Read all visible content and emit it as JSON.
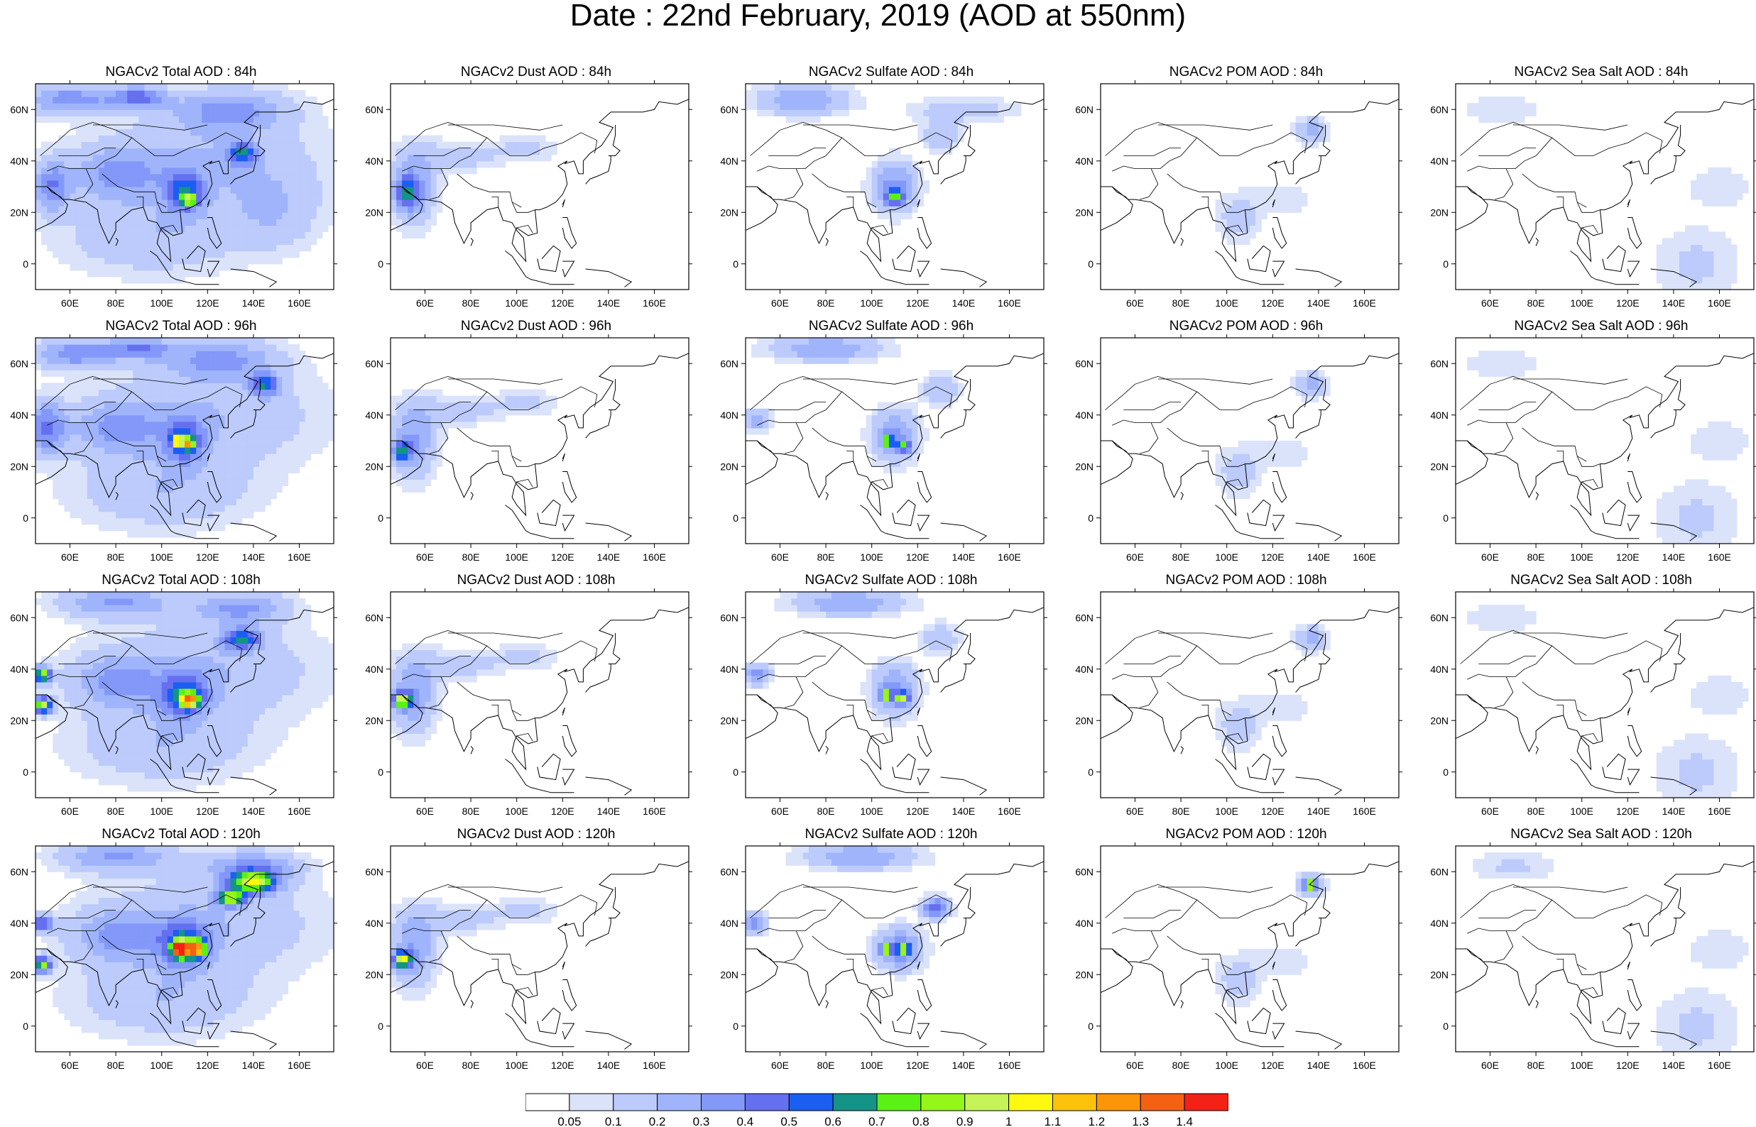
{
  "title": "Date : 22nd February, 2019 (AOD at 550nm)",
  "colors": {
    "levels": [
      "#ffffff",
      "#dbe3fb",
      "#bccbfb",
      "#a0b4fb",
      "#8398f8",
      "#6570f0",
      "#1a5ef2",
      "#139487",
      "#5af214",
      "#96f519",
      "#c6f357",
      "#fff80f",
      "#fdc20b",
      "#fd9509",
      "#f56113",
      "#f42116"
    ]
  },
  "colorbar": {
    "labels": [
      "0.05",
      "0.1",
      "0.2",
      "0.3",
      "0.4",
      "0.5",
      "0.6",
      "0.7",
      "0.8",
      "0.9",
      "1",
      "1.1",
      "1.2",
      "1.3",
      "1.4"
    ]
  },
  "axes": {
    "x_ticks": [
      "60E",
      "80E",
      "100E",
      "120E",
      "140E",
      "160E"
    ],
    "y_ticks": [
      "60N",
      "40N",
      "20N",
      "0"
    ]
  },
  "panels": [
    {
      "title": "NGACv2 Total AOD : 84h",
      "variable": "total",
      "hour": 84
    },
    {
      "title": "NGACv2 Dust AOD : 84h",
      "variable": "dust",
      "hour": 84
    },
    {
      "title": "NGACv2 Sulfate AOD : 84h",
      "variable": "sulfate",
      "hour": 84
    },
    {
      "title": "NGACv2 POM AOD : 84h",
      "variable": "pom",
      "hour": 84
    },
    {
      "title": "NGACv2 Sea Salt AOD : 84h",
      "variable": "seasalt",
      "hour": 84
    },
    {
      "title": "NGACv2 Total AOD : 96h",
      "variable": "total",
      "hour": 96
    },
    {
      "title": "NGACv2 Dust AOD : 96h",
      "variable": "dust",
      "hour": 96
    },
    {
      "title": "NGACv2 Sulfate AOD : 96h",
      "variable": "sulfate",
      "hour": 96
    },
    {
      "title": "NGACv2 POM AOD : 96h",
      "variable": "pom",
      "hour": 96
    },
    {
      "title": "NGACv2 Sea Salt AOD : 96h",
      "variable": "seasalt",
      "hour": 96
    },
    {
      "title": "NGACv2 Total AOD : 108h",
      "variable": "total",
      "hour": 108
    },
    {
      "title": "NGACv2 Dust AOD : 108h",
      "variable": "dust",
      "hour": 108
    },
    {
      "title": "NGACv2 Sulfate AOD : 108h",
      "variable": "sulfate",
      "hour": 108
    },
    {
      "title": "NGACv2 POM AOD : 108h",
      "variable": "pom",
      "hour": 108
    },
    {
      "title": "NGACv2 Sea Salt AOD : 108h",
      "variable": "seasalt",
      "hour": 108
    },
    {
      "title": "NGACv2 Total AOD : 120h",
      "variable": "total",
      "hour": 120
    },
    {
      "title": "NGACv2 Dust AOD : 120h",
      "variable": "dust",
      "hour": 120
    },
    {
      "title": "NGACv2 Sulfate AOD : 120h",
      "variable": "sulfate",
      "hour": 120
    },
    {
      "title": "NGACv2 POM AOD : 120h",
      "variable": "pom",
      "hour": 120
    },
    {
      "title": "NGACv2 Sea Salt  AOD : 120h",
      "variable": "seasalt",
      "hour": 120
    }
  ],
  "chart_data": {
    "type": "heatmap",
    "title": "Date : 22nd February, 2019 (AOD at 550nm)",
    "grid_layout": "4 rows x 5 columns",
    "x_range": [
      45,
      175
    ],
    "y_range": [
      -10,
      70
    ],
    "x_ticks": [
      60,
      80,
      100,
      120,
      140,
      160
    ],
    "y_ticks": [
      60,
      40,
      20,
      0
    ],
    "color_levels": [
      0.05,
      0.1,
      0.2,
      0.3,
      0.4,
      0.5,
      0.6,
      0.7,
      0.8,
      0.9,
      1,
      1.1,
      1.2,
      1.3,
      1.4
    ],
    "blobs": {
      "total": [
        [
          [
            60,
            64,
            20,
            6,
            0.35
          ],
          [
            90,
            65,
            12,
            4,
            0.4
          ],
          [
            130,
            60,
            25,
            8,
            0.3
          ],
          [
            110,
            28,
            8,
            8,
            0.45
          ],
          [
            112,
            25,
            3,
            2,
            0.6
          ],
          [
            135,
            43,
            6,
            4,
            0.5
          ],
          [
            52,
            30,
            8,
            10,
            0.35
          ],
          [
            80,
            35,
            20,
            10,
            0.25
          ],
          [
            120,
            40,
            50,
            20,
            0.2
          ],
          [
            95,
            10,
            40,
            15,
            0.18
          ],
          [
            150,
            20,
            20,
            15,
            0.15
          ]
        ],
        [
          [
            62,
            64,
            18,
            6,
            0.35
          ],
          [
            90,
            66,
            14,
            4,
            0.35
          ],
          [
            125,
            62,
            25,
            8,
            0.3
          ],
          [
            110,
            30,
            8,
            8,
            0.45
          ],
          [
            107,
            30,
            2,
            2,
            0.8
          ],
          [
            112,
            29,
            2,
            2,
            0.75
          ],
          [
            145,
            52,
            6,
            4,
            0.5
          ],
          [
            50,
            35,
            8,
            10,
            0.4
          ],
          [
            80,
            35,
            20,
            10,
            0.25
          ],
          [
            120,
            40,
            50,
            20,
            0.2
          ],
          [
            100,
            10,
            40,
            15,
            0.18
          ]
        ],
        [
          [
            80,
            66,
            25,
            6,
            0.3
          ],
          [
            135,
            64,
            20,
            6,
            0.3
          ],
          [
            110,
            30,
            10,
            8,
            0.45
          ],
          [
            112,
            28,
            4,
            3,
            0.85
          ],
          [
            48,
            38,
            4,
            3,
            0.85
          ],
          [
            48,
            26,
            4,
            3,
            0.9
          ],
          [
            135,
            52,
            8,
            4,
            0.55
          ],
          [
            80,
            35,
            20,
            10,
            0.25
          ],
          [
            120,
            40,
            50,
            20,
            0.2
          ],
          [
            100,
            10,
            40,
            15,
            0.18
          ]
        ],
        [
          [
            80,
            66,
            25,
            6,
            0.3
          ],
          [
            140,
            62,
            20,
            6,
            0.3
          ],
          [
            110,
            32,
            10,
            8,
            0.5
          ],
          [
            108,
            30,
            3,
            3,
            1.3
          ],
          [
            115,
            30,
            4,
            3,
            0.95
          ],
          [
            140,
            56,
            10,
            4,
            0.85
          ],
          [
            130,
            50,
            6,
            3,
            0.8
          ],
          [
            48,
            40,
            5,
            3,
            0.5
          ],
          [
            48,
            24,
            4,
            3,
            0.8
          ],
          [
            80,
            35,
            20,
            10,
            0.25
          ],
          [
            120,
            40,
            50,
            20,
            0.2
          ],
          [
            100,
            10,
            40,
            15,
            0.18
          ]
        ]
      ],
      "dust": [
        [
          [
            55,
            30,
            10,
            15,
            0.3
          ],
          [
            52,
            28,
            5,
            6,
            0.4
          ],
          [
            75,
            42,
            18,
            6,
            0.15
          ],
          [
            105,
            45,
            15,
            5,
            0.12
          ]
        ],
        [
          [
            55,
            30,
            10,
            15,
            0.3
          ],
          [
            50,
            26,
            4,
            4,
            0.5
          ],
          [
            75,
            42,
            18,
            6,
            0.15
          ],
          [
            105,
            45,
            15,
            5,
            0.12
          ]
        ],
        [
          [
            55,
            30,
            10,
            15,
            0.3
          ],
          [
            50,
            28,
            4,
            3,
            0.85
          ],
          [
            75,
            42,
            18,
            6,
            0.15
          ],
          [
            105,
            45,
            15,
            5,
            0.12
          ]
        ],
        [
          [
            55,
            30,
            10,
            15,
            0.3
          ],
          [
            50,
            26,
            4,
            3,
            0.85
          ],
          [
            75,
            42,
            18,
            6,
            0.15
          ],
          [
            105,
            45,
            15,
            5,
            0.12
          ]
        ]
      ],
      "sulfate": [
        [
          [
            70,
            64,
            20,
            6,
            0.3
          ],
          [
            110,
            30,
            10,
            10,
            0.35
          ],
          [
            110,
            26,
            4,
            3,
            0.45
          ],
          [
            130,
            50,
            8,
            6,
            0.2
          ],
          [
            140,
            60,
            25,
            5,
            0.15
          ]
        ],
        [
          [
            80,
            66,
            25,
            5,
            0.3
          ],
          [
            110,
            32,
            10,
            10,
            0.35
          ],
          [
            107,
            30,
            2,
            2,
            0.75
          ],
          [
            114,
            28,
            3,
            2,
            0.5
          ],
          [
            130,
            50,
            8,
            6,
            0.2
          ],
          [
            50,
            38,
            6,
            4,
            0.3
          ]
        ],
        [
          [
            90,
            66,
            25,
            5,
            0.3
          ],
          [
            110,
            32,
            10,
            10,
            0.35
          ],
          [
            106,
            30,
            2,
            2,
            0.8
          ],
          [
            113,
            29,
            3,
            2,
            0.75
          ],
          [
            130,
            52,
            8,
            6,
            0.2
          ],
          [
            50,
            38,
            6,
            4,
            0.35
          ]
        ],
        [
          [
            95,
            66,
            25,
            5,
            0.3
          ],
          [
            112,
            30,
            10,
            8,
            0.4
          ],
          [
            106,
            30,
            2,
            2,
            0.85
          ],
          [
            114,
            30,
            3,
            2,
            0.7
          ],
          [
            128,
            46,
            6,
            4,
            0.5
          ],
          [
            48,
            40,
            6,
            4,
            0.35
          ]
        ]
      ],
      "pom": [
        [
          [
            137,
            52,
            7,
            5,
            0.25
          ],
          [
            105,
            18,
            10,
            10,
            0.15
          ],
          [
            125,
            25,
            12,
            6,
            0.1
          ]
        ],
        [
          [
            137,
            52,
            7,
            5,
            0.25
          ],
          [
            105,
            18,
            10,
            10,
            0.15
          ],
          [
            125,
            25,
            12,
            6,
            0.1
          ]
        ],
        [
          [
            137,
            52,
            7,
            5,
            0.25
          ],
          [
            105,
            18,
            10,
            10,
            0.15
          ],
          [
            125,
            25,
            12,
            6,
            0.1
          ]
        ],
        [
          [
            137,
            55,
            6,
            4,
            0.35
          ],
          [
            136,
            55,
            2,
            2,
            0.8
          ],
          [
            105,
            18,
            10,
            10,
            0.15
          ],
          [
            125,
            25,
            12,
            6,
            0.1
          ]
        ]
      ],
      "seasalt": [
        [
          [
            65,
            60,
            20,
            6,
            0.1
          ],
          [
            150,
            0,
            20,
            15,
            0.12
          ],
          [
            160,
            30,
            15,
            8,
            0.1
          ]
        ],
        [
          [
            65,
            60,
            20,
            6,
            0.1
          ],
          [
            150,
            0,
            20,
            15,
            0.12
          ],
          [
            160,
            30,
            15,
            8,
            0.1
          ]
        ],
        [
          [
            65,
            60,
            20,
            6,
            0.1
          ],
          [
            150,
            0,
            20,
            15,
            0.12
          ],
          [
            160,
            30,
            15,
            8,
            0.1
          ]
        ],
        [
          [
            70,
            62,
            20,
            6,
            0.12
          ],
          [
            150,
            0,
            20,
            15,
            0.12
          ],
          [
            160,
            30,
            15,
            8,
            0.1
          ]
        ]
      ]
    }
  }
}
